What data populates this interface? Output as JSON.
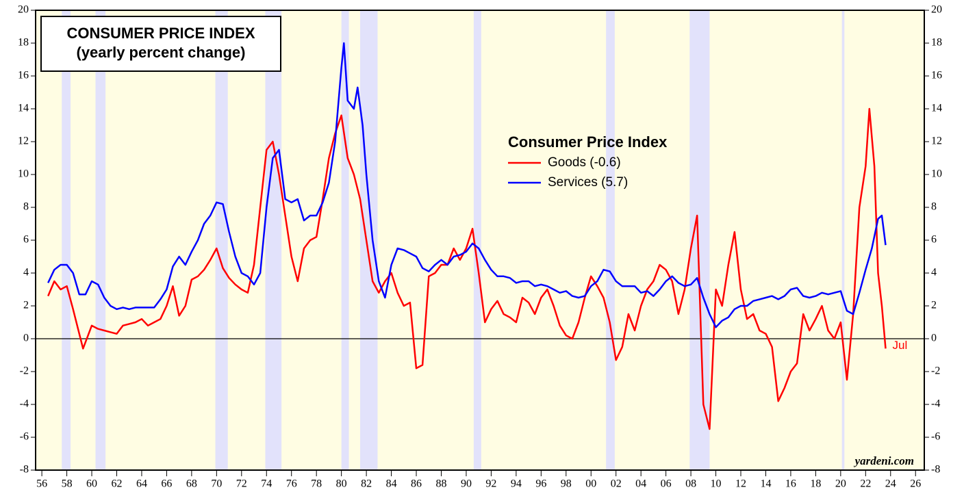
{
  "chart_data": {
    "type": "line",
    "title": "CONSUMER PRICE INDEX",
    "subtitle": "(yearly percent change)",
    "legend_title": "Consumer Price Index",
    "annotations": {
      "source": "yardeni.com",
      "last_month": "Jul"
    },
    "xlim": [
      1955.5,
      2026.7
    ],
    "ylim": [
      -8,
      20
    ],
    "xticks": [
      {
        "value": 1956,
        "label": "56"
      },
      {
        "value": 1958,
        "label": "58"
      },
      {
        "value": 1960,
        "label": "60"
      },
      {
        "value": 1962,
        "label": "62"
      },
      {
        "value": 1964,
        "label": "64"
      },
      {
        "value": 1966,
        "label": "66"
      },
      {
        "value": 1968,
        "label": "68"
      },
      {
        "value": 1970,
        "label": "70"
      },
      {
        "value": 1972,
        "label": "72"
      },
      {
        "value": 1974,
        "label": "74"
      },
      {
        "value": 1976,
        "label": "76"
      },
      {
        "value": 1978,
        "label": "78"
      },
      {
        "value": 1980,
        "label": "80"
      },
      {
        "value": 1982,
        "label": "82"
      },
      {
        "value": 1984,
        "label": "84"
      },
      {
        "value": 1986,
        "label": "86"
      },
      {
        "value": 1988,
        "label": "88"
      },
      {
        "value": 1990,
        "label": "90"
      },
      {
        "value": 1992,
        "label": "92"
      },
      {
        "value": 1994,
        "label": "94"
      },
      {
        "value": 1996,
        "label": "96"
      },
      {
        "value": 1998,
        "label": "98"
      },
      {
        "value": 2000,
        "label": "00"
      },
      {
        "value": 2002,
        "label": "02"
      },
      {
        "value": 2004,
        "label": "04"
      },
      {
        "value": 2006,
        "label": "06"
      },
      {
        "value": 2008,
        "label": "08"
      },
      {
        "value": 2010,
        "label": "10"
      },
      {
        "value": 2012,
        "label": "12"
      },
      {
        "value": 2014,
        "label": "14"
      },
      {
        "value": 2016,
        "label": "16"
      },
      {
        "value": 2018,
        "label": "18"
      },
      {
        "value": 2020,
        "label": "20"
      },
      {
        "value": 2022,
        "label": "22"
      },
      {
        "value": 2024,
        "label": "24"
      },
      {
        "value": 2026,
        "label": "26"
      }
    ],
    "yticks": [
      -8,
      -6,
      -4,
      -2,
      0,
      2,
      4,
      6,
      8,
      10,
      12,
      14,
      16,
      18,
      20
    ],
    "shaded_periods": [
      [
        1957.6,
        1958.3
      ],
      [
        1960.3,
        1961.1
      ],
      [
        1969.9,
        1970.9
      ],
      [
        1973.9,
        1975.2
      ],
      [
        1980.0,
        1980.6
      ],
      [
        1981.5,
        1982.9
      ],
      [
        1990.6,
        1991.2
      ],
      [
        2001.2,
        2001.9
      ],
      [
        2007.9,
        2009.5
      ],
      [
        2020.1,
        2020.3
      ]
    ],
    "series": [
      {
        "name": "Goods (-0.6)",
        "color": "#ff0000",
        "x": [
          1956.5,
          1957,
          1957.5,
          1958,
          1958.5,
          1959,
          1959.3,
          1959.7,
          1960,
          1960.5,
          1961,
          1961.5,
          1962,
          1962.5,
          1963,
          1963.5,
          1964,
          1964.5,
          1965,
          1965.5,
          1966,
          1966.5,
          1967,
          1967.5,
          1968,
          1968.5,
          1969,
          1969.5,
          1970,
          1970.5,
          1971,
          1971.5,
          1972,
          1972.5,
          1973,
          1973.5,
          1974,
          1974.5,
          1975,
          1975.5,
          1976,
          1976.5,
          1977,
          1977.5,
          1978,
          1978.5,
          1979,
          1979.5,
          1980,
          1980.5,
          1981,
          1981.5,
          1982,
          1982.5,
          1983,
          1983.5,
          1984,
          1984.5,
          1985,
          1985.5,
          1986,
          1986.5,
          1987,
          1987.5,
          1988,
          1988.5,
          1989,
          1989.5,
          1990,
          1990.5,
          1991,
          1991.5,
          1992,
          1992.5,
          1993,
          1993.5,
          1994,
          1994.5,
          1995,
          1995.5,
          1996,
          1996.5,
          1997,
          1997.5,
          1998,
          1998.5,
          1999,
          1999.5,
          2000,
          2000.5,
          2001,
          2001.5,
          2002,
          2002.5,
          2003,
          2003.5,
          2004,
          2004.5,
          2005,
          2005.5,
          2006,
          2006.5,
          2007,
          2007.5,
          2008,
          2008.5,
          2009,
          2009.5,
          2010,
          2010.5,
          2011,
          2011.5,
          2012,
          2012.5,
          2013,
          2013.5,
          2014,
          2014.5,
          2015,
          2015.5,
          2016,
          2016.5,
          2017,
          2017.5,
          2018,
          2018.5,
          2019,
          2019.5,
          2020,
          2020.5,
          2021,
          2021.5,
          2022,
          2022.3,
          2022.7,
          2023,
          2023.3,
          2023.6
        ],
        "values": [
          2.6,
          3.5,
          3.0,
          3.2,
          1.8,
          0.3,
          -0.6,
          0.2,
          0.8,
          0.6,
          0.5,
          0.4,
          0.3,
          0.8,
          0.9,
          1.0,
          1.2,
          0.8,
          1.0,
          1.2,
          2.0,
          3.2,
          1.4,
          2.0,
          3.6,
          3.8,
          4.2,
          4.8,
          5.5,
          4.3,
          3.7,
          3.3,
          3.0,
          2.8,
          4.5,
          8.0,
          11.5,
          12.0,
          10.0,
          7.5,
          5.0,
          3.5,
          5.5,
          6.0,
          6.2,
          8.5,
          11.0,
          12.5,
          13.6,
          11.0,
          10.0,
          8.5,
          6.0,
          3.5,
          2.8,
          3.5,
          4.0,
          2.8,
          2.0,
          2.2,
          -1.8,
          -1.6,
          3.8,
          4.0,
          4.5,
          4.5,
          5.5,
          4.8,
          5.5,
          6.7,
          4.0,
          1.0,
          1.8,
          2.3,
          1.5,
          1.3,
          1.0,
          2.5,
          2.2,
          1.5,
          2.5,
          3.0,
          2.0,
          0.8,
          0.2,
          0.0,
          1.0,
          2.5,
          3.8,
          3.2,
          2.5,
          1.0,
          -1.3,
          -0.5,
          1.5,
          0.5,
          2.0,
          3.0,
          3.5,
          4.5,
          4.2,
          3.5,
          1.5,
          3.0,
          5.5,
          7.5,
          -4.0,
          -5.5,
          3.0,
          2.0,
          4.5,
          6.5,
          3.0,
          1.2,
          1.5,
          0.5,
          0.3,
          -0.5,
          -3.8,
          -3.0,
          -2.0,
          -1.5,
          1.5,
          0.5,
          1.2,
          2.0,
          0.5,
          0.0,
          1.0,
          -2.5,
          1.5,
          8.0,
          10.5,
          14.0,
          10.5,
          4.0,
          2.0,
          -0.6
        ]
      },
      {
        "name": "Services (5.7)",
        "color": "#0000ff",
        "x": [
          1956.5,
          1957,
          1957.5,
          1958,
          1958.5,
          1959,
          1959.5,
          1960,
          1960.5,
          1961,
          1961.5,
          1962,
          1962.5,
          1963,
          1963.5,
          1964,
          1964.5,
          1965,
          1965.5,
          1966,
          1966.5,
          1967,
          1967.5,
          1968,
          1968.5,
          1969,
          1969.5,
          1970,
          1970.5,
          1971,
          1971.5,
          1972,
          1972.5,
          1973,
          1973.5,
          1974,
          1974.5,
          1975,
          1975.5,
          1976,
          1976.5,
          1977,
          1977.5,
          1978,
          1978.5,
          1979,
          1979.5,
          1980,
          1980.2,
          1980.5,
          1981,
          1981.3,
          1981.7,
          1982,
          1982.5,
          1983,
          1983.5,
          1984,
          1984.5,
          1985,
          1985.5,
          1986,
          1986.5,
          1987,
          1987.5,
          1988,
          1988.5,
          1989,
          1989.5,
          1990,
          1990.5,
          1991,
          1991.5,
          1992,
          1992.5,
          1993,
          1993.5,
          1994,
          1994.5,
          1995,
          1995.5,
          1996,
          1996.5,
          1997,
          1997.5,
          1998,
          1998.5,
          1999,
          1999.5,
          2000,
          2000.5,
          2001,
          2001.5,
          2002,
          2002.5,
          2003,
          2003.5,
          2004,
          2004.5,
          2005,
          2005.5,
          2006,
          2006.5,
          2007,
          2007.5,
          2008,
          2008.5,
          2009,
          2009.5,
          2010,
          2010.5,
          2011,
          2011.5,
          2012,
          2012.5,
          2013,
          2013.5,
          2014,
          2014.5,
          2015,
          2015.5,
          2016,
          2016.5,
          2017,
          2017.5,
          2018,
          2018.5,
          2019,
          2019.5,
          2020,
          2020.5,
          2021,
          2021.5,
          2022,
          2022.5,
          2023,
          2023.3,
          2023.6
        ],
        "values": [
          3.4,
          4.2,
          4.5,
          4.5,
          4.0,
          2.7,
          2.7,
          3.5,
          3.3,
          2.5,
          2.0,
          1.8,
          1.9,
          1.8,
          1.9,
          1.9,
          1.9,
          1.9,
          2.4,
          3.0,
          4.4,
          5.0,
          4.5,
          5.3,
          6.0,
          7.0,
          7.5,
          8.3,
          8.2,
          6.5,
          5.0,
          4.0,
          3.8,
          3.3,
          4.0,
          8.0,
          11.0,
          11.5,
          8.5,
          8.3,
          8.5,
          7.2,
          7.5,
          7.5,
          8.3,
          9.5,
          12.0,
          16.5,
          18.0,
          14.5,
          14.0,
          15.3,
          13.0,
          10.0,
          6.0,
          3.5,
          2.5,
          4.5,
          5.5,
          5.4,
          5.2,
          5.0,
          4.3,
          4.1,
          4.5,
          4.8,
          4.5,
          5.0,
          5.1,
          5.3,
          5.8,
          5.5,
          4.8,
          4.2,
          3.8,
          3.8,
          3.7,
          3.4,
          3.5,
          3.5,
          3.2,
          3.3,
          3.2,
          3.0,
          2.8,
          2.9,
          2.6,
          2.5,
          2.6,
          3.2,
          3.5,
          4.2,
          4.1,
          3.5,
          3.2,
          3.2,
          3.2,
          2.8,
          2.9,
          2.6,
          3.0,
          3.5,
          3.8,
          3.4,
          3.2,
          3.3,
          3.7,
          2.5,
          1.5,
          0.7,
          1.1,
          1.3,
          1.8,
          2.0,
          2.0,
          2.3,
          2.4,
          2.5,
          2.6,
          2.4,
          2.6,
          3.0,
          3.1,
          2.6,
          2.5,
          2.6,
          2.8,
          2.7,
          2.8,
          2.9,
          1.7,
          1.5,
          2.8,
          4.2,
          5.5,
          7.3,
          7.5,
          5.7
        ]
      }
    ]
  }
}
